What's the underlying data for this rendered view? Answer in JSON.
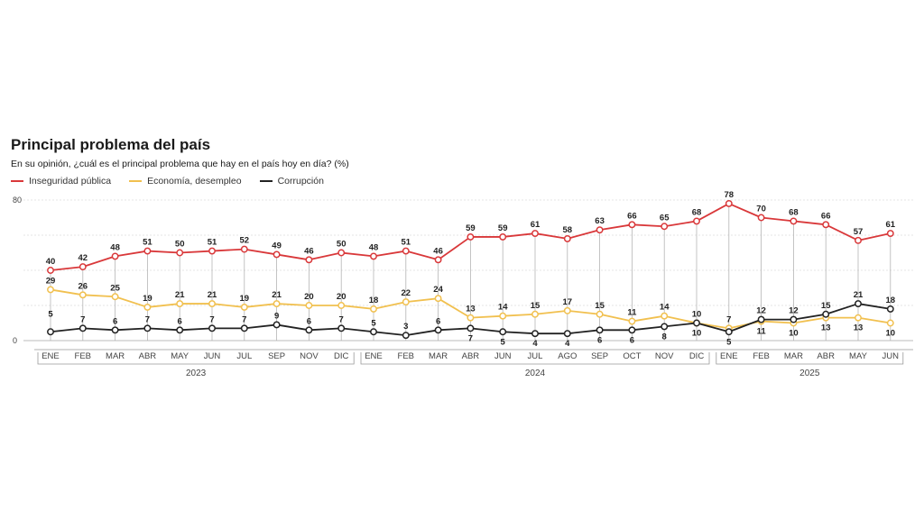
{
  "chart_data": {
    "type": "line",
    "title": "Principal problema del país",
    "subtitle": "En su opinión, ¿cuál es el principal problema que hay en el país hoy en día? (%)",
    "ylim": [
      0,
      80
    ],
    "y_ticks": [
      0,
      80
    ],
    "categories": [
      "ENE",
      "FEB",
      "MAR",
      "ABR",
      "MAY",
      "JUN",
      "JUL",
      "SEP",
      "NOV",
      "DIC",
      "ENE",
      "FEB",
      "MAR",
      "ABR",
      "JUN",
      "JUL",
      "AGO",
      "SEP",
      "OCT",
      "NOV",
      "DIC",
      "ENE",
      "FEB",
      "MAR",
      "ABR",
      "MAY",
      "JUN"
    ],
    "years": [
      {
        "label": "2023",
        "start": 0,
        "end": 9
      },
      {
        "label": "2024",
        "start": 10,
        "end": 20
      },
      {
        "label": "2025",
        "start": 21,
        "end": 26
      }
    ],
    "series": [
      {
        "name": "Inseguridad pública",
        "color": "#d9383a",
        "values": [
          40,
          42,
          48,
          51,
          50,
          51,
          52,
          49,
          46,
          50,
          48,
          51,
          46,
          59,
          59,
          61,
          58,
          63,
          66,
          65,
          68,
          78,
          70,
          68,
          66,
          57,
          61
        ]
      },
      {
        "name": "Economía, desempleo",
        "color": "#f1c04f",
        "values": [
          29,
          26,
          25,
          19,
          21,
          21,
          19,
          21,
          20,
          20,
          18,
          22,
          24,
          13,
          14,
          15,
          17,
          15,
          11,
          14,
          10,
          7,
          11,
          10,
          13,
          13,
          10
        ]
      },
      {
        "name": "Corrupción",
        "color": "#222222",
        "values": [
          5,
          7,
          6,
          7,
          6,
          7,
          7,
          9,
          6,
          7,
          5,
          3,
          6,
          7,
          5,
          4,
          4,
          6,
          6,
          8,
          10,
          5,
          12,
          12,
          15,
          21,
          18
        ]
      }
    ]
  }
}
